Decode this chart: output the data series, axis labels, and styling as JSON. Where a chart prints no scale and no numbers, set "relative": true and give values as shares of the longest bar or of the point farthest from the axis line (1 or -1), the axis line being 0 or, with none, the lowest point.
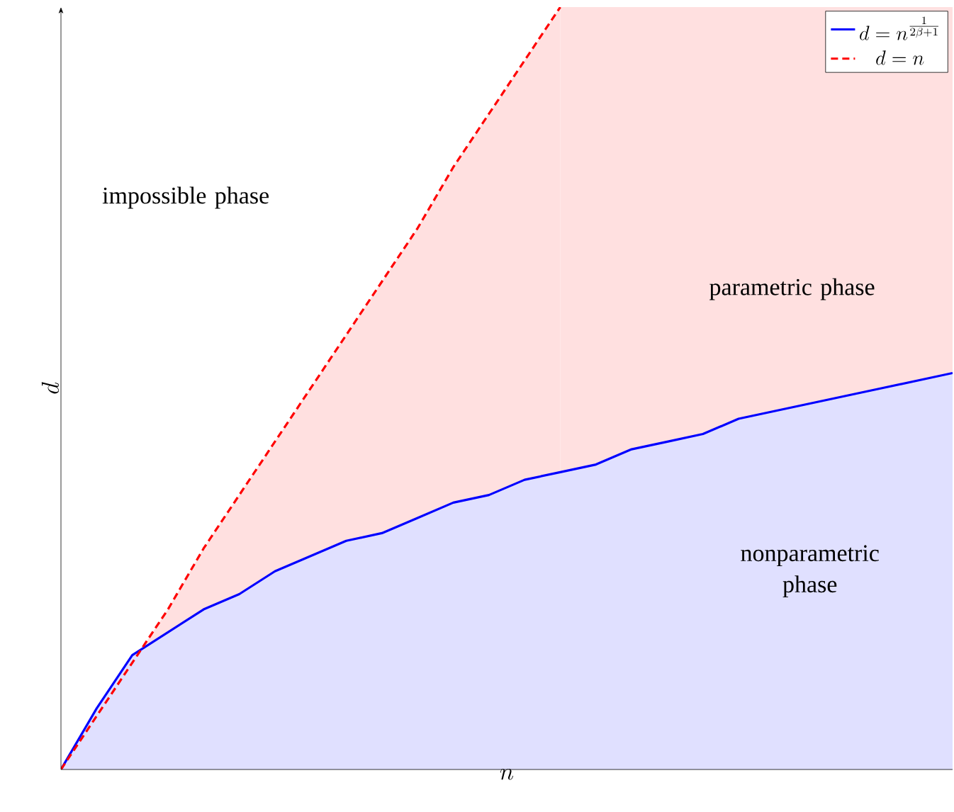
{
  "chart_data": {
    "type": "area",
    "relative": true,
    "xlabel": "n",
    "ylabel": "d",
    "legend": "top right",
    "marker": "none",
    "categories": [
      null,
      null,
      null,
      null,
      null,
      null,
      null,
      null,
      null,
      null,
      null,
      null,
      null,
      null,
      null,
      null,
      null,
      null,
      null,
      null,
      null,
      null,
      null,
      null,
      null,
      null
    ],
    "series": [
      {
        "color": "#ffe0e0",
        "values": [
          null,
          null,
          null,
          null,
          null,
          null,
          null,
          null,
          null,
          null,
          null,
          null,
          null,
          null,
          1.0,
          1.0,
          1.0,
          1.0,
          1.0,
          1.0,
          1.0,
          1.0,
          1.0,
          1.0,
          1.0,
          1.0
        ]
      },
      {
        "name": "d = n^{\\frac{1}{2\\beta+1}}",
        "color": "#0000ff",
        "line_style": "solid",
        "values": [
          0,
          0.08,
          0.15,
          0.18,
          0.21,
          0.23,
          0.26,
          0.28,
          0.3,
          0.31,
          0.33,
          0.35,
          0.36,
          0.38,
          0.39,
          0.4,
          0.42,
          0.43,
          0.44,
          0.46,
          0.47,
          0.48,
          0.49,
          0.5,
          0.51,
          0.52
        ]
      },
      {
        "name": "d = n",
        "color": "#ff0000",
        "line_style": "dashed",
        "values": [
          0,
          0.07,
          0.14,
          0.21,
          0.29,
          0.36,
          0.43,
          0.5,
          0.57,
          0.64,
          0.71,
          0.79,
          0.86,
          0.93,
          1.0,
          null,
          null,
          null,
          null,
          null,
          null,
          null,
          null,
          null,
          null,
          null
        ]
      }
    ],
    "annotations": [
      "impossible phase",
      "parametric phase",
      "nonparametric phase"
    ]
  }
}
